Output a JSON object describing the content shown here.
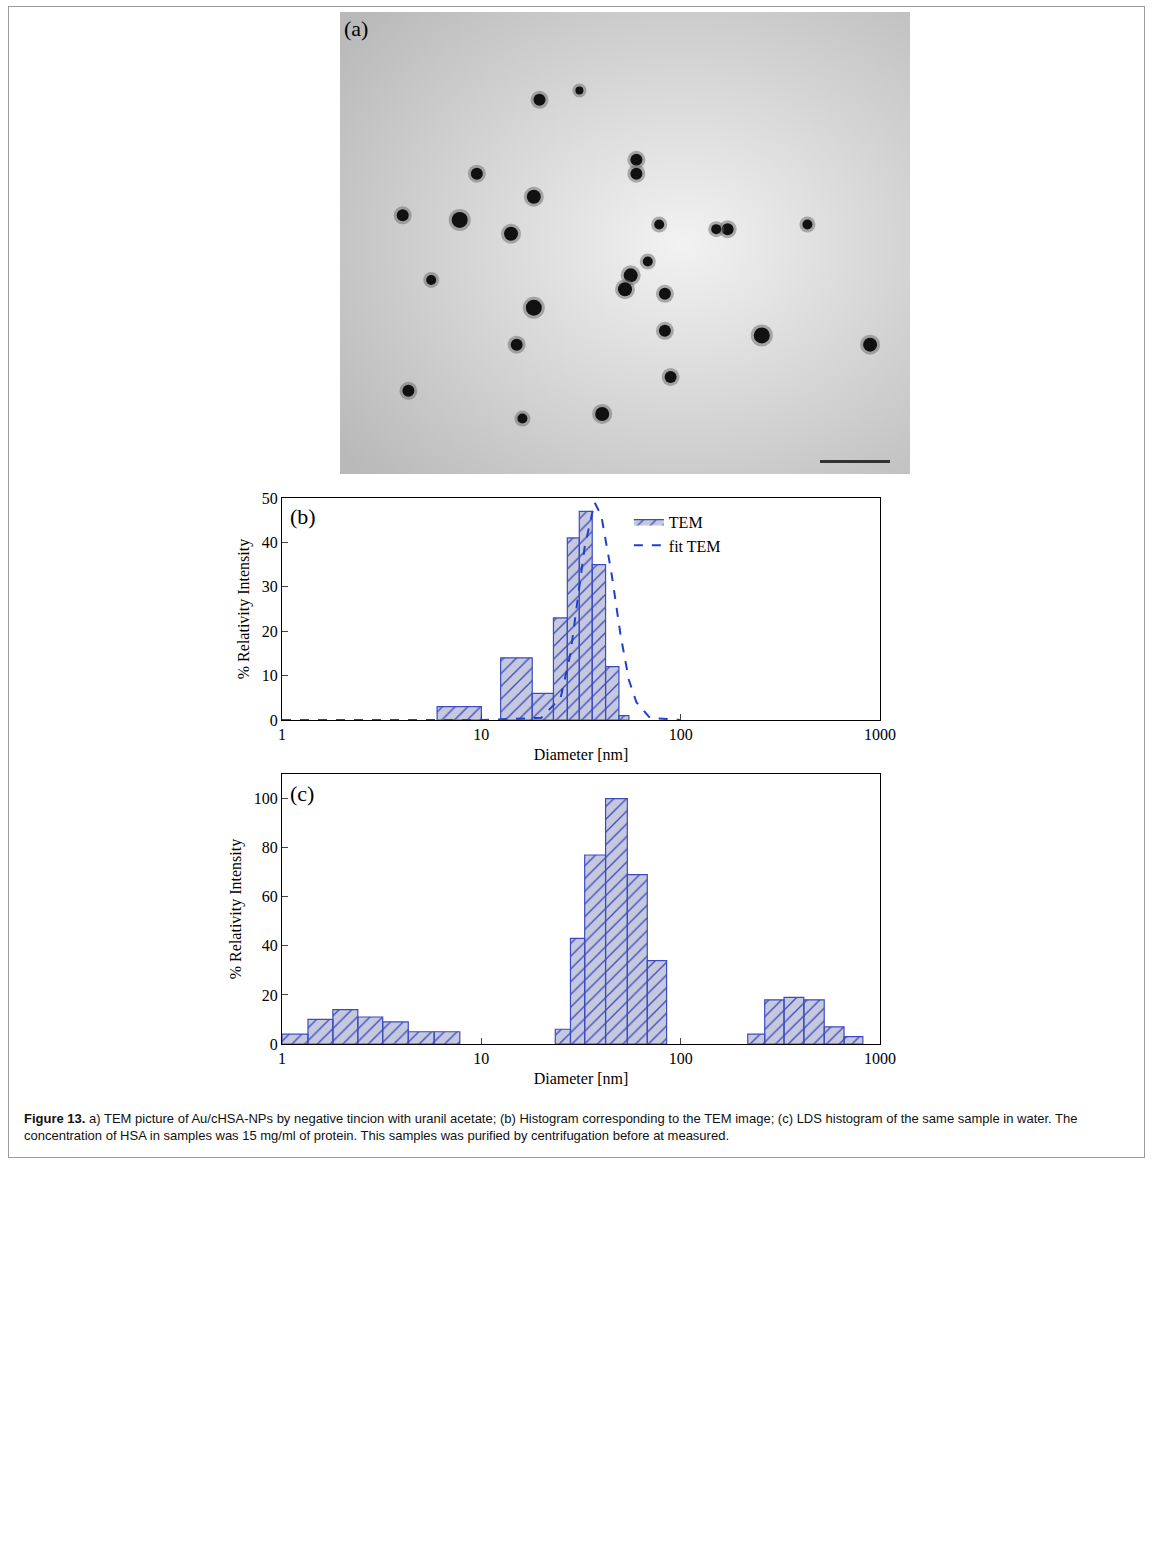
{
  "image": {
    "label": "(a)"
  },
  "chart_data": [
    {
      "type": "histogram",
      "label": "(b)",
      "xlabel": "Diameter [nm]",
      "ylabel": "% Relativity Intensity",
      "log": "x",
      "grid": false,
      "xlim": [
        1,
        1000
      ],
      "xticks": [
        1,
        10,
        100,
        1000
      ],
      "ylim": [
        0,
        50
      ],
      "yticks": [
        0,
        10,
        20,
        30,
        40,
        50
      ],
      "legend": "upper right",
      "series": [
        {
          "name": "TEM",
          "type": "histogram",
          "color": "#3b4cc0",
          "bins": [
            6,
            10,
            12.5,
            18,
            23,
            27,
            31,
            36,
            42,
            49,
            55
          ],
          "counts": [
            3,
            0,
            14,
            6,
            23,
            41,
            47,
            35,
            12,
            1
          ]
        },
        {
          "name": "fit TEM",
          "type": "line",
          "line_style": "dashed",
          "color": "#1f3fcf",
          "x": [
            1,
            10,
            20,
            25,
            28,
            30,
            33,
            37,
            40,
            45,
            50,
            55,
            60,
            70,
            100
          ],
          "values": [
            0,
            0,
            0.5,
            5,
            15,
            25,
            39,
            49,
            46,
            33,
            19,
            9,
            4,
            0.5,
            0
          ]
        }
      ]
    },
    {
      "type": "histogram",
      "label": "(c)",
      "xlabel": "Diameter [nm]",
      "ylabel": "% Relativity Intensity",
      "log": "x",
      "grid": false,
      "xlim": [
        1,
        1000
      ],
      "xticks": [
        1,
        10,
        100,
        1000
      ],
      "ylim": [
        0,
        110
      ],
      "yticks": [
        0,
        20,
        40,
        60,
        80,
        100
      ],
      "series": [
        {
          "type": "histogram",
          "color": "#3b4cc0",
          "bins": [
            1,
            1.35,
            1.8,
            2.4,
            3.2,
            4.3,
            5.8,
            7.8,
            23.5,
            28,
            33,
            42,
            54,
            68,
            85,
            217,
            264,
            330,
            415,
            525,
            660,
            820
          ],
          "counts": [
            4,
            10,
            14,
            11,
            9,
            5,
            5,
            0,
            6,
            43,
            77,
            100,
            69,
            34,
            0,
            4,
            18,
            19,
            18,
            7,
            3
          ]
        }
      ]
    }
  ],
  "caption": {
    "label": "Figure 13.",
    "text": "a) TEM picture of Au/cHSA-NPs by negative tincion with uranil acetate; (b) Histogram corresponding to the TEM image; (c) LDS histogram of the same sample in water. The concentration of HSA in samples was 15 mg/ml of protein. This samples was purified by centrifugation before at measured."
  }
}
